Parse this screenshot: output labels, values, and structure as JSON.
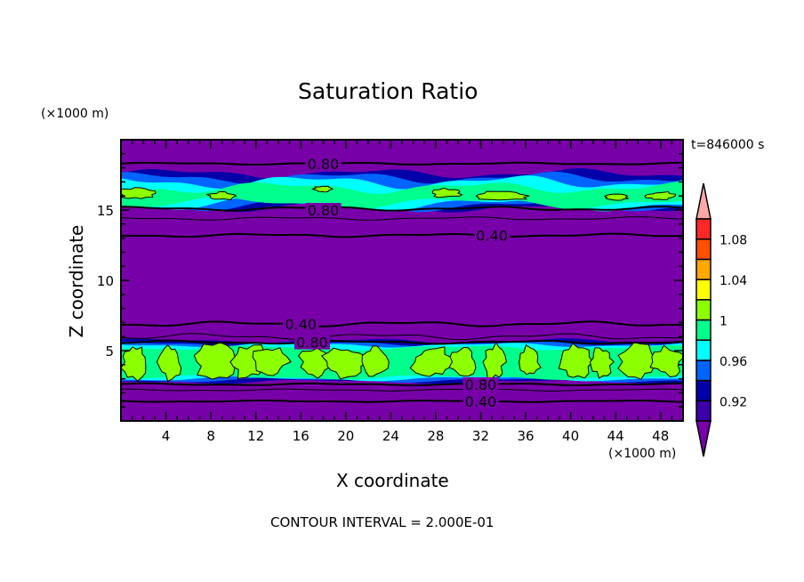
{
  "chart_data": {
    "type": "heatmap",
    "title": "Saturation Ratio",
    "xlabel": "X coordinate",
    "ylabel": "Z coordinate",
    "x_unit": "(×1000 m)",
    "y_unit": "(×1000 m)",
    "xlim": [
      0,
      50
    ],
    "ylim": [
      0,
      20
    ],
    "x_ticks": [
      4,
      8,
      12,
      16,
      20,
      24,
      28,
      32,
      36,
      40,
      44,
      48
    ],
    "y_ticks": [
      5,
      10,
      15
    ],
    "time_label": "t=846000 s",
    "footer": "CONTOUR INTERVAL = 2.000E-01",
    "colorbar": {
      "levels": [
        0.9,
        0.92,
        0.94,
        0.96,
        0.98,
        1.0,
        1.02,
        1.04,
        1.06,
        1.08,
        1.1
      ],
      "tick_labels": [
        "0.92",
        "0.96",
        "1",
        "1.04",
        "1.08"
      ],
      "colors": [
        "#7800a8",
        "#3c00a8",
        "#0000a8",
        "#0064ff",
        "#00ffff",
        "#00ff8c",
        "#8cff00",
        "#ffff00",
        "#ffa800",
        "#ff5000",
        "#ff2828",
        "#ffa8a8"
      ]
    },
    "contour_labels": [
      {
        "text": "0.80",
        "x": 18,
        "z": 18.3
      },
      {
        "text": "0.80",
        "x": 18,
        "z": 15.0
      },
      {
        "text": "0.40",
        "x": 33,
        "z": 13.2
      },
      {
        "text": "0.40",
        "x": 16,
        "z": 6.9
      },
      {
        "text": "0.80",
        "x": 17,
        "z": 5.6
      },
      {
        "text": "0.80",
        "x": 32,
        "z": 2.6
      },
      {
        "text": "0.40",
        "x": 32,
        "z": 1.4
      }
    ],
    "background_color": "#7800a8"
  }
}
